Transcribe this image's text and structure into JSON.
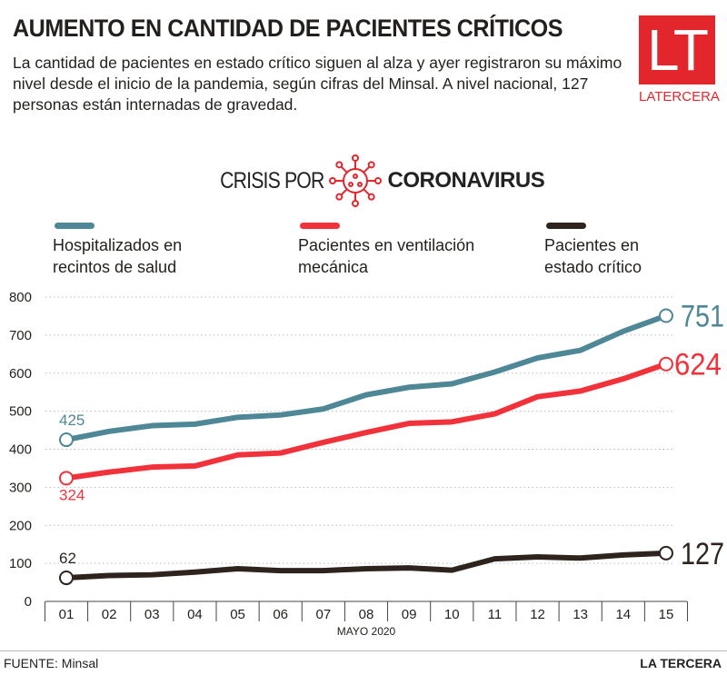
{
  "header": {
    "title": "AUMENTO EN CANTIDAD DE PACIENTES CRÍTICOS",
    "subtitle": "La cantidad de pacientes en estado crítico siguen al alza y ayer registraron su máximo nivel desde el inicio de la pandemia, según cifras del Minsal. A nivel nacional, 127 personas están internadas de gravedad.",
    "logo_letters": "LT",
    "logo_text": "LATERCERA",
    "section_prefix": "CRISIS POR",
    "section_name": "CORONAVIRUS",
    "section_icon": "virus-icon"
  },
  "colors": {
    "hospitalizados": "#4e8796",
    "ventilacion": "#f2323a",
    "critico": "#2e241d",
    "brand": "#e2262b"
  },
  "chart_data": {
    "type": "line",
    "xlabel": "MAYO 2020",
    "ylabel": "",
    "ylim": [
      0,
      800
    ],
    "yticks": [
      "0",
      "100",
      "200",
      "300",
      "400",
      "500",
      "600",
      "700",
      "800"
    ],
    "categories": [
      "01",
      "02",
      "03",
      "04",
      "05",
      "06",
      "07",
      "08",
      "09",
      "10",
      "11",
      "12",
      "13",
      "14",
      "15"
    ],
    "grid": true,
    "legend_placement": "top",
    "series": [
      {
        "name": "Hospitalizados en recintos de salud",
        "color": "#4e8796",
        "values": [
          425,
          447,
          462,
          466,
          484,
          490,
          506,
          543,
          563,
          572,
          603,
          640,
          660,
          710,
          751
        ],
        "labels": {
          "first": "425",
          "last": "751"
        }
      },
      {
        "name": "Pacientes en ventilación mecánica",
        "color": "#f2323a",
        "values": [
          324,
          340,
          353,
          356,
          385,
          390,
          418,
          444,
          468,
          472,
          493,
          538,
          553,
          585,
          624
        ],
        "labels": {
          "first": "324",
          "last": "624"
        }
      },
      {
        "name": "Pacientes en estado crítico",
        "color": "#2e241d",
        "values": [
          62,
          68,
          70,
          77,
          86,
          81,
          81,
          86,
          88,
          82,
          112,
          117,
          114,
          122,
          127
        ],
        "labels": {
          "first": "62",
          "last": "127"
        }
      }
    ]
  },
  "footer": {
    "source": "FUENTE: Minsal",
    "brand": "LA TERCERA"
  }
}
